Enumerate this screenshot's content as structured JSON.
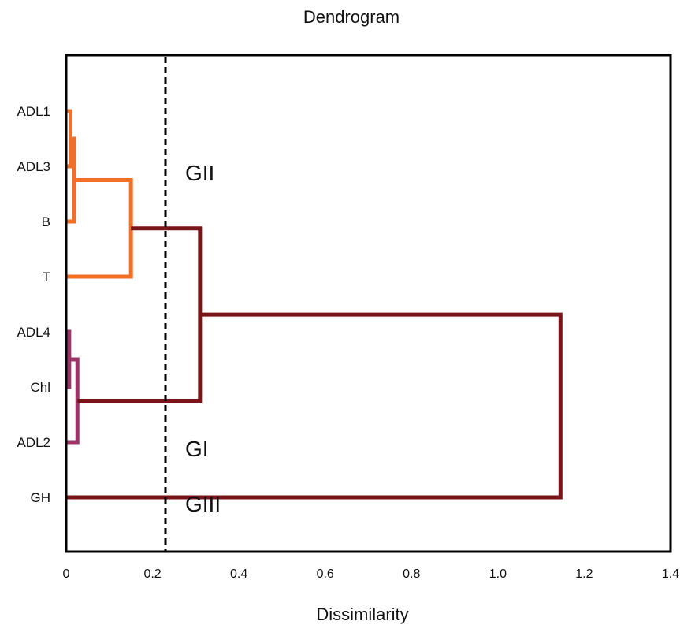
{
  "chart_data": {
    "type": "dendrogram",
    "title": "Dendrogram",
    "xlabel": "Dissimilarity",
    "ylabel": "",
    "xlim": [
      0,
      1.4
    ],
    "xticks": [
      "0",
      "0.2",
      "0.4",
      "0.6",
      "0.8",
      "1.0",
      "1.2",
      "1.4"
    ],
    "xtick_values": [
      0,
      0.2,
      0.4,
      0.6,
      0.8,
      1.0,
      1.2,
      1.4
    ],
    "leaves": [
      "ADL1",
      "ADL3",
      "B",
      "T",
      "ADL4",
      "Chl",
      "ADL2",
      "GH"
    ],
    "merges": [
      {
        "id": "m1",
        "children": [
          "ADL1",
          "ADL3"
        ],
        "height": 0.01,
        "color": "#f07028"
      },
      {
        "id": "m2",
        "children": [
          "m1",
          "B"
        ],
        "height": 0.018,
        "color": "#f07028"
      },
      {
        "id": "m3",
        "children": [
          "m2",
          "T"
        ],
        "height": 0.15,
        "color": "#f07028"
      },
      {
        "id": "m4",
        "children": [
          "ADL4",
          "Chl"
        ],
        "height": 0.007,
        "color": "#9c3468"
      },
      {
        "id": "m5",
        "children": [
          "m4",
          "ADL2"
        ],
        "height": 0.026,
        "color": "#9c3468"
      },
      {
        "id": "m6",
        "children": [
          "m3",
          "m5"
        ],
        "height": 0.31,
        "color": "#7a1418"
      },
      {
        "id": "m7",
        "children": [
          "m6",
          "GH"
        ],
        "height": 1.145,
        "color": "#7a1418"
      }
    ],
    "cutoff": 0.23,
    "groups": [
      {
        "name": "GII",
        "near_leaf": "ADL3"
      },
      {
        "name": "GI",
        "near_leaf": "ADL2"
      },
      {
        "name": "GIII",
        "near_leaf": "GH"
      }
    ],
    "grid": false,
    "legend": "none",
    "colors": {
      "cluster_GII": "#f07028",
      "cluster_GI": "#9c3468",
      "root": "#7a1418",
      "frame": "#000000"
    }
  }
}
